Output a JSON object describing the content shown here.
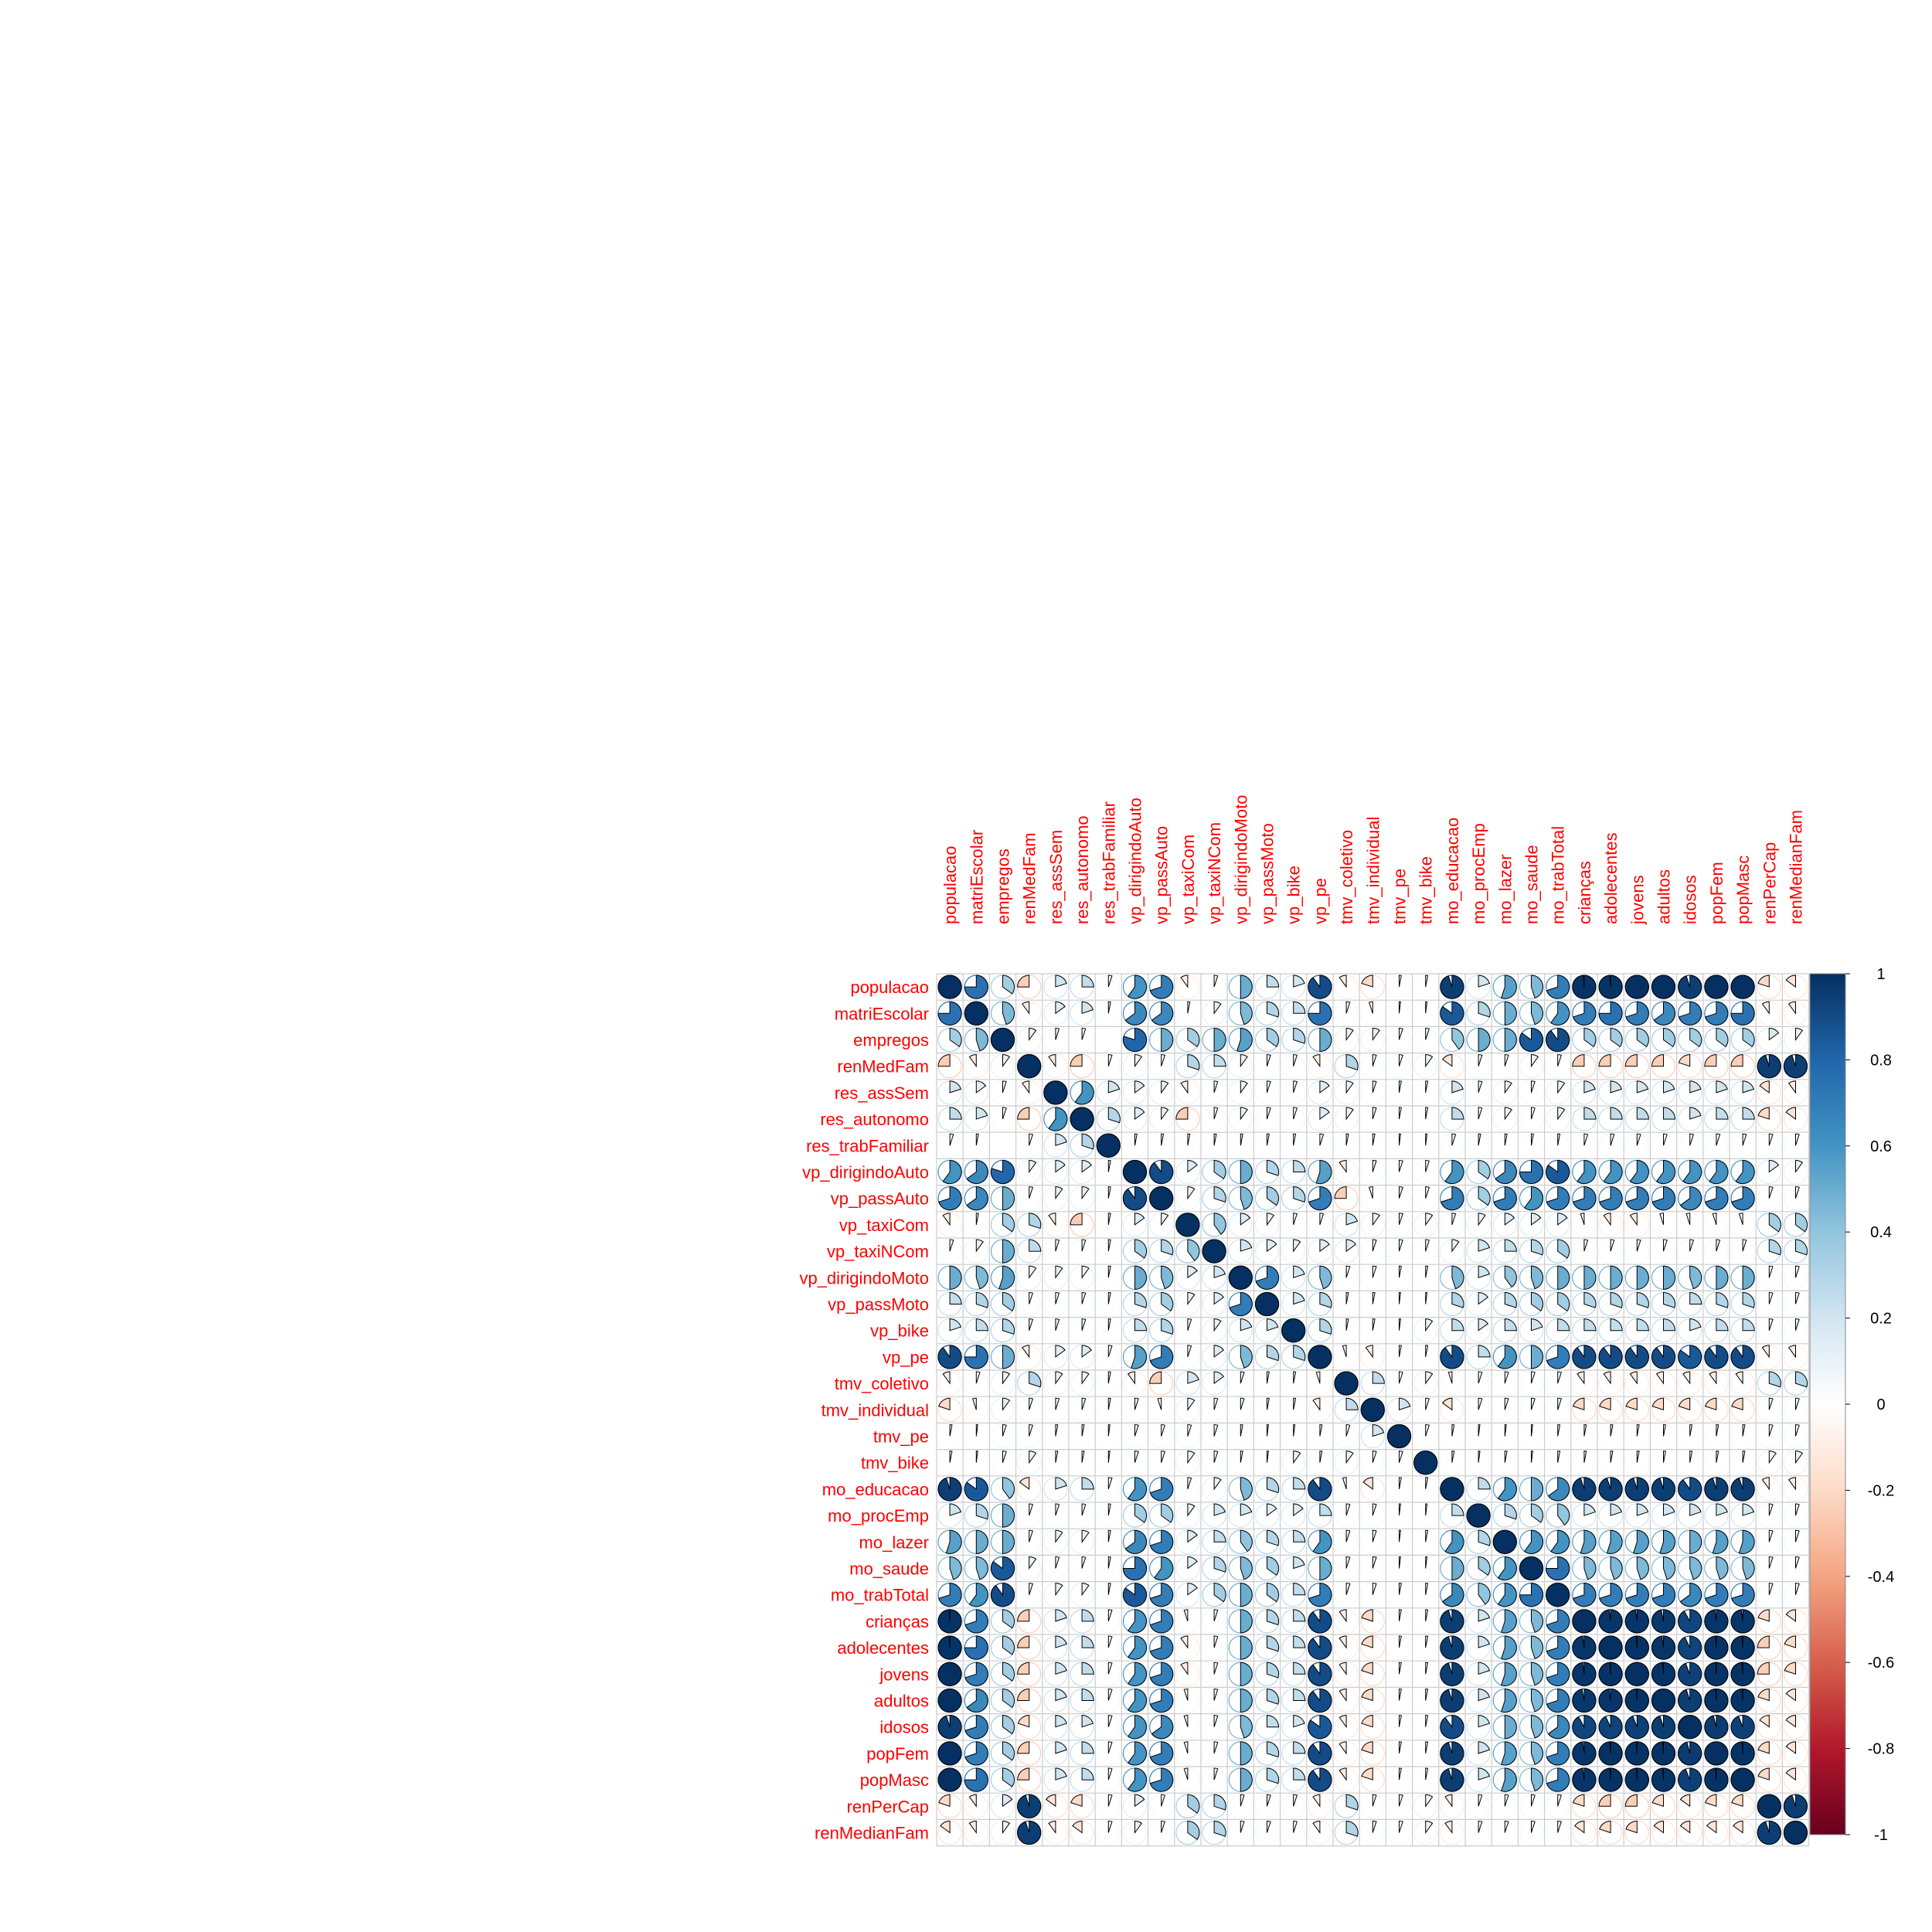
{
  "chart_data": {
    "type": "heatmap",
    "method": "pie",
    "variables": [
      "populacao",
      "matriEscolar",
      "empregos",
      "renMedFam",
      "res_assSem",
      "res_autonomo",
      "res_trabFamiliar",
      "vp_dirigindoAuto",
      "vp_passAuto",
      "vp_taxiCom",
      "vp_taxiNCom",
      "vp_dirigindoMoto",
      "vp_passMoto",
      "vp_bike",
      "vp_pe",
      "tmv_coletivo",
      "tmv_individual",
      "tmv_pe",
      "tmv_bike",
      "mo_educacao",
      "mo_procEmp",
      "mo_lazer",
      "mo_saude",
      "mo_trabTotal",
      "crianças",
      "adolecentes",
      "jovens",
      "adultos",
      "idosos",
      "popFem",
      "popMasc",
      "renPerCap",
      "renMedianFam"
    ],
    "colorbar_ticks": [
      "1",
      "0.8",
      "0.6",
      "0.4",
      "0.2",
      "0",
      "-0.2",
      "-0.4",
      "-0.6",
      "-0.8",
      "-1"
    ],
    "colorbar_range": [
      -1,
      1
    ],
    "colors": {
      "negative": "#67001f",
      "neutral": "#ffffff",
      "positive": "#053061",
      "label": "#ff0000",
      "grid": "#cccccc"
    },
    "values": [
      [
        1.0,
        0.75,
        0.35,
        -0.25,
        0.2,
        0.25,
        0.05,
        0.6,
        0.7,
        -0.1,
        0.05,
        0.5,
        0.25,
        0.2,
        0.9,
        -0.1,
        -0.2,
        0.03,
        0.03,
        0.95,
        0.2,
        0.55,
        0.45,
        0.7,
        0.99,
        0.99,
        1.0,
        1.0,
        0.95,
        1.0,
        1.0,
        -0.2,
        -0.15
      ],
      [
        0.75,
        1.0,
        0.45,
        -0.1,
        0.15,
        0.2,
        0.03,
        0.65,
        0.65,
        0.03,
        0.1,
        0.45,
        0.3,
        0.25,
        0.75,
        0.05,
        -0.05,
        0.02,
        0.02,
        0.85,
        0.3,
        0.5,
        0.45,
        0.6,
        0.7,
        0.75,
        0.7,
        0.65,
        0.7,
        0.7,
        0.75,
        -0.1,
        -0.1
      ],
      [
        0.35,
        0.45,
        1.0,
        0.1,
        0.05,
        0.05,
        0.0,
        0.8,
        0.5,
        0.35,
        0.5,
        0.55,
        0.35,
        0.3,
        0.5,
        0.1,
        0.1,
        0.05,
        0.05,
        0.4,
        0.5,
        0.5,
        0.85,
        0.9,
        0.35,
        0.35,
        0.35,
        0.35,
        0.35,
        0.35,
        0.35,
        0.15,
        0.1
      ],
      [
        -0.25,
        -0.1,
        0.1,
        1.0,
        -0.1,
        -0.25,
        0.05,
        0.1,
        0.05,
        0.3,
        0.25,
        0.1,
        0.05,
        0.05,
        -0.1,
        0.3,
        0.05,
        0.05,
        0.1,
        -0.15,
        0.05,
        0.05,
        0.1,
        0.05,
        -0.25,
        -0.25,
        -0.25,
        -0.25,
        -0.2,
        -0.25,
        -0.25,
        0.95,
        0.95
      ],
      [
        0.2,
        0.15,
        0.05,
        -0.1,
        1.0,
        0.6,
        0.2,
        0.15,
        0.1,
        -0.1,
        0.05,
        0.1,
        0.05,
        0.05,
        0.15,
        0.1,
        0.05,
        0.03,
        0.03,
        0.2,
        0.05,
        0.1,
        0.05,
        0.1,
        0.2,
        0.2,
        0.2,
        0.2,
        0.2,
        0.2,
        0.2,
        -0.15,
        -0.1
      ],
      [
        0.25,
        0.2,
        0.05,
        -0.25,
        0.6,
        1.0,
        0.3,
        0.15,
        0.1,
        -0.25,
        0.05,
        0.1,
        0.05,
        0.05,
        0.15,
        0.1,
        0.05,
        0.03,
        0.03,
        0.25,
        0.05,
        0.1,
        0.05,
        0.1,
        0.25,
        0.25,
        0.25,
        0.25,
        0.2,
        0.25,
        0.25,
        -0.2,
        -0.15
      ],
      [
        0.05,
        0.03,
        0.0,
        0.05,
        0.2,
        0.3,
        1.0,
        0.03,
        0.03,
        0.03,
        0.03,
        0.03,
        0.03,
        0.03,
        0.05,
        0.03,
        0.03,
        0.02,
        0.02,
        0.05,
        0.03,
        0.03,
        0.03,
        0.03,
        0.05,
        0.05,
        0.05,
        0.05,
        0.05,
        0.05,
        0.05,
        0.05,
        0.05
      ],
      [
        0.6,
        0.65,
        0.8,
        0.1,
        0.15,
        0.15,
        0.03,
        1.0,
        0.9,
        0.15,
        0.35,
        0.5,
        0.3,
        0.25,
        0.55,
        -0.1,
        0.05,
        0.05,
        0.05,
        0.6,
        0.35,
        0.65,
        0.75,
        0.85,
        0.6,
        0.6,
        0.6,
        0.6,
        0.6,
        0.6,
        0.6,
        0.15,
        0.1
      ],
      [
        0.7,
        0.65,
        0.5,
        0.05,
        0.1,
        0.1,
        0.03,
        0.9,
        1.0,
        0.1,
        0.3,
        0.45,
        0.35,
        0.3,
        0.7,
        -0.25,
        -0.05,
        0.05,
        0.05,
        0.7,
        0.35,
        0.7,
        0.6,
        0.7,
        0.7,
        0.7,
        0.7,
        0.7,
        0.65,
        0.7,
        0.7,
        0.05,
        0.05
      ],
      [
        -0.1,
        0.03,
        0.35,
        0.3,
        -0.1,
        -0.25,
        0.03,
        0.15,
        0.1,
        1.0,
        0.4,
        0.15,
        0.1,
        0.05,
        0.05,
        0.2,
        0.1,
        0.05,
        0.1,
        0.05,
        0.1,
        0.15,
        0.15,
        0.15,
        -0.05,
        -0.1,
        -0.1,
        -0.05,
        -0.05,
        -0.05,
        -0.05,
        0.35,
        0.35
      ],
      [
        0.05,
        0.1,
        0.5,
        0.25,
        0.05,
        0.05,
        0.03,
        0.35,
        0.3,
        0.4,
        1.0,
        0.2,
        0.15,
        0.1,
        0.15,
        0.15,
        0.05,
        0.05,
        0.05,
        0.1,
        0.2,
        0.25,
        0.3,
        0.35,
        0.05,
        0.05,
        0.05,
        0.05,
        0.05,
        0.05,
        0.05,
        0.3,
        0.3
      ],
      [
        0.5,
        0.45,
        0.55,
        0.1,
        0.1,
        0.1,
        0.03,
        0.5,
        0.45,
        0.15,
        0.2,
        1.0,
        0.7,
        0.2,
        0.45,
        0.05,
        0.05,
        0.03,
        0.03,
        0.45,
        0.2,
        0.4,
        0.45,
        0.5,
        0.5,
        0.5,
        0.5,
        0.5,
        0.45,
        0.5,
        0.5,
        0.05,
        0.05
      ],
      [
        0.25,
        0.3,
        0.35,
        0.05,
        0.05,
        0.05,
        0.03,
        0.3,
        0.35,
        0.1,
        0.15,
        0.7,
        1.0,
        0.2,
        0.3,
        0.03,
        0.03,
        0.02,
        0.02,
        0.3,
        0.15,
        0.3,
        0.35,
        0.35,
        0.3,
        0.3,
        0.3,
        0.3,
        0.25,
        0.3,
        0.3,
        0.05,
        0.05
      ],
      [
        0.2,
        0.25,
        0.3,
        0.05,
        0.05,
        0.05,
        0.03,
        0.25,
        0.3,
        0.05,
        0.1,
        0.2,
        0.2,
        1.0,
        0.3,
        0.03,
        0.03,
        0.02,
        0.1,
        0.25,
        0.15,
        0.25,
        0.2,
        0.25,
        0.25,
        0.25,
        0.25,
        0.25,
        0.2,
        0.25,
        0.25,
        0.05,
        0.05
      ],
      [
        0.9,
        0.75,
        0.5,
        -0.1,
        0.15,
        0.15,
        0.05,
        0.55,
        0.7,
        0.05,
        0.15,
        0.45,
        0.3,
        0.3,
        1.0,
        -0.05,
        -0.1,
        0.03,
        0.03,
        0.9,
        0.25,
        0.6,
        0.5,
        0.7,
        0.9,
        0.9,
        0.9,
        0.9,
        0.85,
        0.9,
        0.9,
        -0.1,
        -0.1
      ],
      [
        -0.1,
        0.05,
        0.1,
        0.3,
        0.1,
        0.1,
        0.03,
        -0.1,
        -0.25,
        0.2,
        0.15,
        0.05,
        0.03,
        0.03,
        -0.05,
        1.0,
        0.25,
        0.05,
        0.1,
        -0.05,
        0.05,
        0.05,
        0.05,
        0.05,
        -0.1,
        -0.1,
        -0.1,
        -0.1,
        -0.1,
        -0.1,
        -0.1,
        0.3,
        0.3
      ],
      [
        -0.2,
        -0.05,
        0.1,
        0.05,
        0.05,
        0.05,
        0.03,
        0.05,
        -0.05,
        0.1,
        0.05,
        0.05,
        0.03,
        0.03,
        -0.1,
        0.25,
        1.0,
        0.2,
        0.05,
        -0.15,
        0.05,
        0.05,
        0.05,
        0.05,
        -0.2,
        -0.2,
        -0.2,
        -0.2,
        -0.2,
        -0.2,
        -0.2,
        0.05,
        0.05
      ],
      [
        0.03,
        0.02,
        0.05,
        0.05,
        0.03,
        0.03,
        0.02,
        0.05,
        0.05,
        0.05,
        0.05,
        0.03,
        0.02,
        0.02,
        0.03,
        0.05,
        0.2,
        1.0,
        0.05,
        0.03,
        0.02,
        0.02,
        0.02,
        0.03,
        0.03,
        0.03,
        0.03,
        0.03,
        0.03,
        0.03,
        0.03,
        0.05,
        0.05
      ],
      [
        0.03,
        0.02,
        0.05,
        0.1,
        0.03,
        0.03,
        0.02,
        0.05,
        0.05,
        0.1,
        0.05,
        0.03,
        0.02,
        0.1,
        0.03,
        0.1,
        0.05,
        0.05,
        1.0,
        0.03,
        0.02,
        0.03,
        0.02,
        0.03,
        0.03,
        0.03,
        0.03,
        0.03,
        0.03,
        0.03,
        0.03,
        0.1,
        0.1
      ],
      [
        0.95,
        0.85,
        0.4,
        -0.15,
        0.2,
        0.25,
        0.05,
        0.6,
        0.7,
        0.05,
        0.1,
        0.45,
        0.3,
        0.25,
        0.9,
        -0.05,
        -0.15,
        0.03,
        0.03,
        1.0,
        0.25,
        0.6,
        0.5,
        0.65,
        0.95,
        0.95,
        0.95,
        0.95,
        0.9,
        0.95,
        0.95,
        -0.1,
        -0.1
      ],
      [
        0.2,
        0.3,
        0.5,
        0.05,
        0.05,
        0.05,
        0.03,
        0.35,
        0.35,
        0.1,
        0.2,
        0.2,
        0.15,
        0.15,
        0.25,
        0.05,
        0.05,
        0.02,
        0.02,
        0.25,
        1.0,
        0.3,
        0.35,
        0.4,
        0.2,
        0.2,
        0.2,
        0.2,
        0.2,
        0.2,
        0.2,
        0.05,
        0.05
      ],
      [
        0.55,
        0.5,
        0.5,
        0.05,
        0.1,
        0.1,
        0.03,
        0.65,
        0.7,
        0.15,
        0.25,
        0.4,
        0.3,
        0.25,
        0.6,
        0.05,
        0.05,
        0.02,
        0.03,
        0.6,
        0.3,
        1.0,
        0.6,
        0.6,
        0.55,
        0.55,
        0.55,
        0.55,
        0.5,
        0.55,
        0.55,
        0.05,
        0.05
      ],
      [
        0.45,
        0.45,
        0.85,
        0.1,
        0.05,
        0.05,
        0.03,
        0.75,
        0.6,
        0.15,
        0.3,
        0.45,
        0.35,
        0.2,
        0.5,
        0.05,
        0.05,
        0.02,
        0.02,
        0.5,
        0.35,
        0.6,
        1.0,
        0.75,
        0.45,
        0.45,
        0.45,
        0.45,
        0.45,
        0.45,
        0.45,
        0.05,
        0.05
      ],
      [
        0.7,
        0.6,
        0.9,
        0.05,
        0.1,
        0.1,
        0.03,
        0.85,
        0.7,
        0.15,
        0.35,
        0.5,
        0.35,
        0.25,
        0.7,
        0.05,
        0.05,
        0.03,
        0.03,
        0.65,
        0.4,
        0.6,
        0.75,
        1.0,
        0.7,
        0.7,
        0.7,
        0.7,
        0.65,
        0.7,
        0.7,
        0.05,
        0.05
      ],
      [
        0.99,
        0.7,
        0.35,
        -0.25,
        0.2,
        0.25,
        0.05,
        0.6,
        0.7,
        -0.05,
        0.05,
        0.5,
        0.3,
        0.25,
        0.9,
        -0.1,
        -0.2,
        0.03,
        0.03,
        0.95,
        0.2,
        0.55,
        0.45,
        0.7,
        1.0,
        0.98,
        0.98,
        0.97,
        0.92,
        0.98,
        0.98,
        -0.2,
        -0.15
      ],
      [
        0.99,
        0.75,
        0.35,
        -0.25,
        0.2,
        0.25,
        0.05,
        0.6,
        0.7,
        -0.1,
        0.05,
        0.5,
        0.3,
        0.25,
        0.9,
        -0.1,
        -0.2,
        0.03,
        0.03,
        0.95,
        0.2,
        0.55,
        0.45,
        0.7,
        0.98,
        1.0,
        0.99,
        0.98,
        0.93,
        0.99,
        0.99,
        -0.25,
        -0.2
      ],
      [
        1.0,
        0.7,
        0.35,
        -0.25,
        0.2,
        0.25,
        0.05,
        0.6,
        0.7,
        -0.1,
        0.05,
        0.5,
        0.3,
        0.25,
        0.9,
        -0.1,
        -0.2,
        0.03,
        0.03,
        0.95,
        0.2,
        0.55,
        0.45,
        0.7,
        0.98,
        0.99,
        1.0,
        0.99,
        0.94,
        0.99,
        0.99,
        -0.25,
        -0.2
      ],
      [
        1.0,
        0.65,
        0.35,
        -0.25,
        0.2,
        0.25,
        0.05,
        0.6,
        0.7,
        -0.05,
        0.05,
        0.5,
        0.3,
        0.25,
        0.9,
        -0.1,
        -0.2,
        0.03,
        0.03,
        0.95,
        0.2,
        0.55,
        0.45,
        0.7,
        0.97,
        0.98,
        0.99,
        1.0,
        0.95,
        0.99,
        0.99,
        -0.2,
        -0.15
      ],
      [
        0.95,
        0.7,
        0.35,
        -0.2,
        0.2,
        0.2,
        0.05,
        0.6,
        0.65,
        -0.05,
        0.05,
        0.45,
        0.25,
        0.2,
        0.85,
        -0.1,
        -0.2,
        0.03,
        0.03,
        0.9,
        0.2,
        0.5,
        0.45,
        0.65,
        0.92,
        0.93,
        0.94,
        0.95,
        1.0,
        0.96,
        0.94,
        -0.15,
        -0.15
      ],
      [
        1.0,
        0.7,
        0.35,
        -0.25,
        0.2,
        0.25,
        0.05,
        0.6,
        0.7,
        -0.05,
        0.05,
        0.5,
        0.3,
        0.25,
        0.9,
        -0.1,
        -0.2,
        0.03,
        0.03,
        0.95,
        0.2,
        0.55,
        0.45,
        0.7,
        0.98,
        0.99,
        0.99,
        0.99,
        0.96,
        1.0,
        0.99,
        -0.2,
        -0.15
      ],
      [
        1.0,
        0.75,
        0.35,
        -0.25,
        0.2,
        0.25,
        0.05,
        0.6,
        0.7,
        -0.05,
        0.05,
        0.5,
        0.3,
        0.25,
        0.9,
        -0.1,
        -0.2,
        0.03,
        0.03,
        0.95,
        0.2,
        0.55,
        0.45,
        0.7,
        0.98,
        0.99,
        0.99,
        0.99,
        0.94,
        0.99,
        1.0,
        -0.2,
        -0.15
      ],
      [
        -0.2,
        -0.1,
        0.15,
        0.95,
        -0.15,
        -0.2,
        0.05,
        0.15,
        0.05,
        0.35,
        0.3,
        0.05,
        0.05,
        0.05,
        -0.1,
        0.3,
        0.05,
        0.05,
        0.1,
        -0.1,
        0.05,
        0.05,
        0.05,
        0.05,
        -0.2,
        -0.25,
        -0.25,
        -0.2,
        -0.15,
        -0.2,
        -0.2,
        1.0,
        0.95
      ],
      [
        -0.15,
        -0.1,
        0.1,
        0.95,
        -0.1,
        -0.15,
        0.05,
        0.1,
        0.05,
        0.35,
        0.3,
        0.05,
        0.05,
        0.05,
        -0.1,
        0.3,
        0.05,
        0.05,
        0.1,
        -0.1,
        0.05,
        0.05,
        0.05,
        0.05,
        -0.15,
        -0.2,
        -0.2,
        -0.15,
        -0.15,
        -0.15,
        -0.15,
        0.95,
        1.0
      ]
    ]
  }
}
